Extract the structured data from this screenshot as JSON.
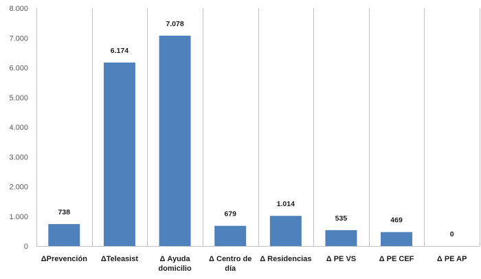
{
  "chart_data": {
    "type": "bar",
    "categories": [
      [
        "ΔPrevención"
      ],
      [
        "ΔTeleasist"
      ],
      [
        "Δ Ayuda",
        "domicilio"
      ],
      [
        "Δ Centro de",
        "día"
      ],
      [
        "Δ Residencias"
      ],
      [
        "Δ PE VS"
      ],
      [
        "Δ PE CEF"
      ],
      [
        "Δ PE AP"
      ]
    ],
    "values": [
      738,
      6174,
      7078,
      679,
      1014,
      535,
      469,
      0
    ],
    "value_labels": [
      "738",
      "6.174",
      "7.078",
      "679",
      "1.014",
      "535",
      "469",
      "0"
    ],
    "yticks": [
      0,
      1000,
      2000,
      3000,
      4000,
      5000,
      6000,
      7000,
      8000
    ],
    "ytick_labels": [
      "0",
      "1.000",
      "2.000",
      "3.000",
      "4.000",
      "5.000",
      "6.000",
      "7.000",
      "8.000"
    ],
    "ylim": [
      0,
      8000
    ],
    "grid": "vertical",
    "legend": "none",
    "colors": {
      "bar": "#4f81bd",
      "grid": "#bfbfbf",
      "text": "#1a1a1a",
      "axis_text": "#595959"
    }
  }
}
